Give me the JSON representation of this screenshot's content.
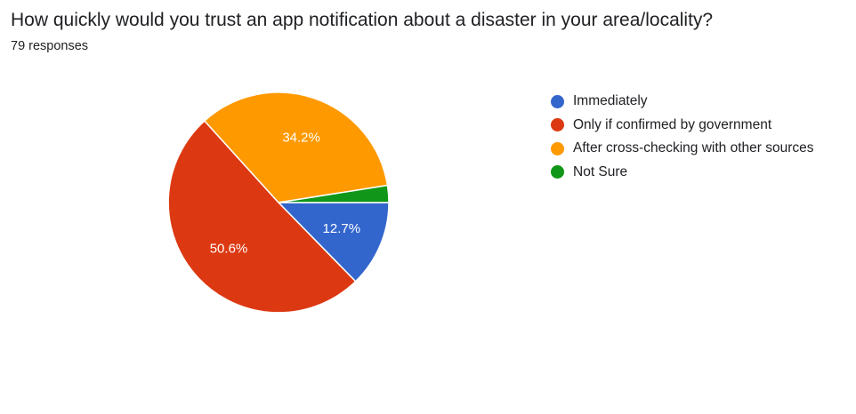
{
  "header": {
    "question": "How quickly would you trust an app notification about a disaster in your area/locality?",
    "responses": "79 responses"
  },
  "chart_data": {
    "type": "pie",
    "categories": [
      "Immediately",
      "Only if confirmed by government",
      "After cross-checking with other sources",
      "Not Sure"
    ],
    "values": [
      12.7,
      50.6,
      34.2,
      2.5
    ],
    "data_labels": [
      "12.7%",
      "50.6%",
      "34.2%",
      ""
    ],
    "colors": [
      "#3366cc",
      "#dc3912",
      "#ff9900",
      "#109618"
    ],
    "start_angle": "3 o'clock, clockwise",
    "legend": "right"
  }
}
